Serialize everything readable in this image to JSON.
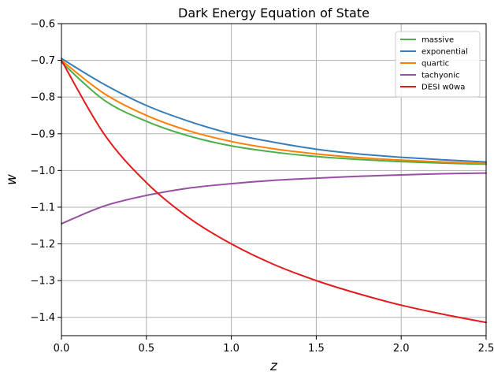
{
  "chart_data": {
    "type": "line",
    "title": "Dark Energy Equation of State",
    "xlabel": "z",
    "ylabel": "w",
    "xlim": [
      0,
      2.5
    ],
    "ylim": [
      -1.45,
      -0.6
    ],
    "xticks": [
      0.0,
      0.5,
      1.0,
      1.5,
      2.0,
      2.5
    ],
    "xtick_labels": [
      "0.0",
      "0.5",
      "1.0",
      "1.5",
      "2.0",
      "2.5"
    ],
    "yticks": [
      -1.4,
      -1.3,
      -1.2,
      -1.1,
      -1.0,
      -0.9,
      -0.8,
      -0.7,
      -0.6
    ],
    "ytick_labels": [
      "−1.4",
      "−1.3",
      "−1.2",
      "−1.1",
      "−1.0",
      "−0.9",
      "−0.8",
      "−0.7",
      "−0.6"
    ],
    "grid": true,
    "legend_position": "top-right",
    "x": [
      0.0,
      0.25,
      0.5,
      0.75,
      1.0,
      1.25,
      1.5,
      1.75,
      2.0,
      2.25,
      2.5
    ],
    "series": [
      {
        "name": "massive",
        "color": "#4daf4a",
        "values": [
          -0.705,
          -0.808,
          -0.866,
          -0.906,
          -0.933,
          -0.95,
          -0.962,
          -0.97,
          -0.976,
          -0.98,
          -0.983
        ]
      },
      {
        "name": "exponential",
        "color": "#377eb8",
        "values": [
          -0.695,
          -0.765,
          -0.823,
          -0.866,
          -0.9,
          -0.923,
          -0.942,
          -0.955,
          -0.964,
          -0.971,
          -0.977
        ]
      },
      {
        "name": "quartic",
        "color": "#ff7f00",
        "values": [
          -0.7,
          -0.79,
          -0.85,
          -0.892,
          -0.921,
          -0.941,
          -0.955,
          -0.965,
          -0.972,
          -0.977,
          -0.981
        ]
      },
      {
        "name": "tachyonic",
        "color": "#984ea3",
        "values": [
          -1.145,
          -1.097,
          -1.068,
          -1.048,
          -1.036,
          -1.027,
          -1.021,
          -1.016,
          -1.012,
          -1.009,
          -1.007
        ]
      },
      {
        "name": "DESI w0wa",
        "color": "#e41a1c",
        "values": [
          -0.7,
          -0.9,
          -1.033,
          -1.129,
          -1.2,
          -1.256,
          -1.3,
          -1.336,
          -1.367,
          -1.392,
          -1.414
        ]
      }
    ]
  }
}
